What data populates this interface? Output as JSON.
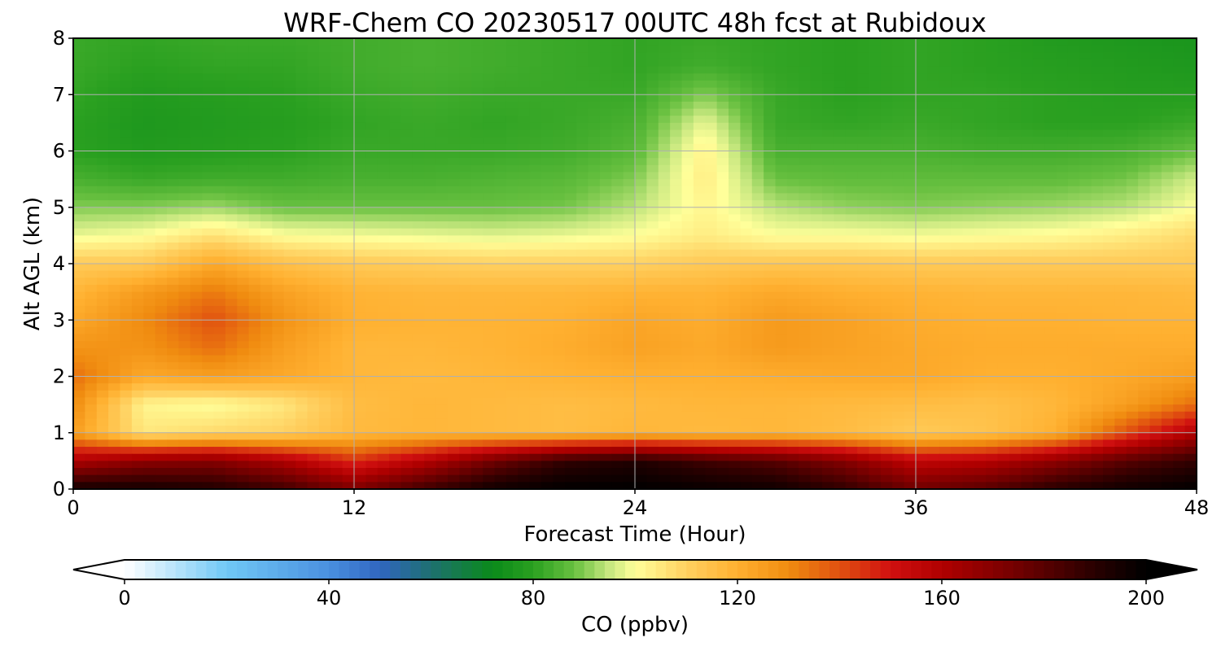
{
  "chart_data": {
    "type": "heatmap",
    "title": "WRF-Chem CO  20230517 00UTC 48h fcst at Rubidoux",
    "xlabel": "Forecast Time (Hour)",
    "ylabel": "Alt AGL (km)",
    "xlim": [
      0,
      48
    ],
    "ylim": [
      0,
      8
    ],
    "x_ticks": [
      0,
      12,
      24,
      36,
      48
    ],
    "y_ticks": [
      0,
      1,
      2,
      3,
      4,
      5,
      6,
      7,
      8
    ],
    "grid": true,
    "x": [
      0,
      3,
      6,
      9,
      12,
      15,
      18,
      21,
      24,
      27,
      30,
      33,
      36,
      39,
      42,
      45,
      48
    ],
    "y": [
      0,
      0.5,
      1,
      1.5,
      2,
      2.5,
      3,
      3.5,
      4,
      4.5,
      5,
      5.5,
      6,
      6.5,
      7,
      7.5,
      8
    ],
    "z": [
      [
        195,
        195,
        192,
        185,
        172,
        185,
        196,
        200,
        200,
        198,
        196,
        188,
        175,
        180,
        190,
        196,
        200
      ],
      [
        160,
        168,
        170,
        160,
        145,
        158,
        175,
        188,
        192,
        185,
        180,
        170,
        155,
        158,
        168,
        180,
        188
      ],
      [
        125,
        105,
        108,
        110,
        117,
        118,
        117,
        116,
        118,
        117,
        118,
        116,
        112,
        114,
        120,
        140,
        160
      ],
      [
        130,
        102,
        100,
        105,
        116,
        118,
        117,
        116,
        117,
        118,
        118,
        117,
        116,
        115,
        118,
        125,
        135
      ],
      [
        135,
        122,
        125,
        122,
        118,
        117,
        118,
        119,
        120,
        120,
        121,
        122,
        122,
        120,
        120,
        122,
        125
      ],
      [
        128,
        128,
        135,
        125,
        118,
        118,
        119,
        121,
        124,
        122,
        126,
        124,
        122,
        121,
        121,
        121,
        121
      ],
      [
        122,
        130,
        140,
        128,
        120,
        119,
        119,
        120,
        123,
        121,
        126,
        124,
        121,
        120,
        120,
        119,
        119
      ],
      [
        118,
        126,
        133,
        124,
        119,
        118,
        118,
        118,
        119,
        119,
        122,
        120,
        119,
        118,
        118,
        118,
        117
      ],
      [
        112,
        112,
        122,
        115,
        112,
        111,
        110,
        110,
        110,
        112,
        113,
        113,
        112,
        112,
        112,
        112,
        112
      ],
      [
        98,
        100,
        106,
        100,
        99,
        98,
        97,
        98,
        100,
        104,
        100,
        100,
        99,
        100,
        101,
        104,
        108
      ],
      [
        90,
        90,
        92,
        88,
        88,
        88,
        88,
        89,
        94,
        102,
        94,
        91,
        90,
        91,
        92,
        94,
        100
      ],
      [
        84,
        82,
        83,
        83,
        84,
        84,
        85,
        86,
        90,
        104,
        88,
        87,
        87,
        87,
        87,
        89,
        96
      ],
      [
        80,
        78,
        79,
        80,
        82,
        82,
        82,
        83,
        86,
        103,
        84,
        84,
        84,
        83,
        83,
        84,
        88
      ],
      [
        80,
        77,
        78,
        79,
        81,
        82,
        81,
        82,
        84,
        98,
        82,
        81,
        82,
        81,
        80,
        80,
        82
      ],
      [
        81,
        78,
        79,
        80,
        82,
        83,
        82,
        82,
        82,
        90,
        82,
        80,
        81,
        81,
        80,
        79,
        79
      ],
      [
        82,
        80,
        81,
        81,
        83,
        84,
        83,
        82,
        81,
        83,
        81,
        80,
        81,
        80,
        79,
        78,
        77
      ],
      [
        82,
        81,
        82,
        82,
        83,
        84,
        83,
        82,
        81,
        82,
        81,
        80,
        81,
        80,
        78,
        77,
        76
      ]
    ],
    "colorbar": {
      "label": "CO  (ppbv)",
      "ticks": [
        0,
        40,
        80,
        120,
        160,
        200
      ],
      "range": [
        0,
        200
      ],
      "extend": "both"
    }
  },
  "colormap": [
    {
      "v": 0,
      "c": "#ffffff"
    },
    {
      "v": 20,
      "c": "#70c8f5"
    },
    {
      "v": 40,
      "c": "#4a90e0"
    },
    {
      "v": 50,
      "c": "#3066c0"
    },
    {
      "v": 60,
      "c": "#1e7070"
    },
    {
      "v": 72,
      "c": "#0a8a1a"
    },
    {
      "v": 80,
      "c": "#2aa020"
    },
    {
      "v": 88,
      "c": "#68c040"
    },
    {
      "v": 95,
      "c": "#c8e880"
    },
    {
      "v": 100,
      "c": "#ffff9a"
    },
    {
      "v": 110,
      "c": "#ffd060"
    },
    {
      "v": 120,
      "c": "#ffb030"
    },
    {
      "v": 130,
      "c": "#f08c10"
    },
    {
      "v": 140,
      "c": "#e05010"
    },
    {
      "v": 150,
      "c": "#d01010"
    },
    {
      "v": 160,
      "c": "#b00000"
    },
    {
      "v": 175,
      "c": "#700000"
    },
    {
      "v": 190,
      "c": "#280000"
    },
    {
      "v": 200,
      "c": "#000000"
    }
  ]
}
